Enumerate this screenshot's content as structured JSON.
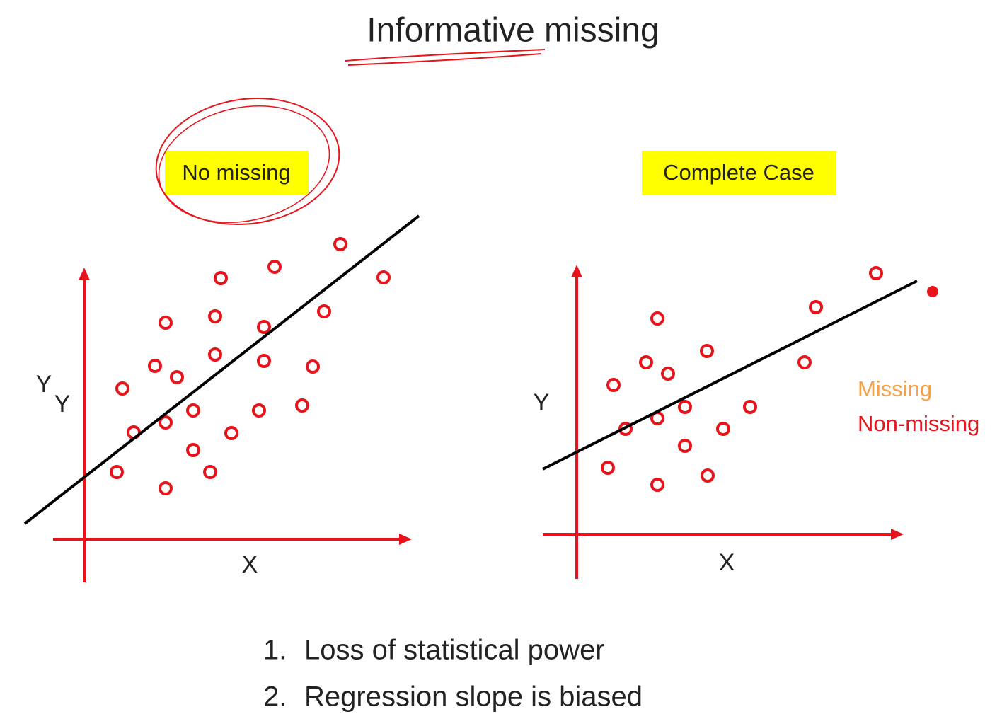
{
  "title": "Informative missing",
  "panels": [
    {
      "label": "No missing",
      "y_labels": [
        "Y",
        "Y"
      ],
      "x_label": "X"
    },
    {
      "label": "Complete Case",
      "y_label": "Y",
      "x_label": "X",
      "legend": [
        "Missing",
        "Non-missing"
      ]
    }
  ],
  "points": [
    {
      "number": "1.",
      "text": "Loss of statistical power"
    },
    {
      "number": "2.",
      "text": "Regression slope is biased"
    }
  ]
}
